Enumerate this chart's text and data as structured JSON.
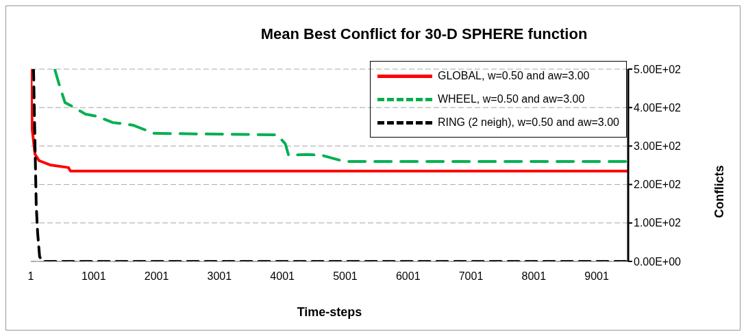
{
  "chart_data": {
    "type": "line",
    "title": "Mean Best Conflict for 30-D SPHERE function",
    "xlabel": "Time-steps",
    "ylabel": "Conflicts",
    "xlim": [
      1,
      9501
    ],
    "xticks": [
      1,
      1001,
      2001,
      3001,
      4001,
      5001,
      6001,
      7001,
      8001,
      9001
    ],
    "ylim": [
      0,
      500
    ],
    "yticks": [
      {
        "value": 0,
        "label": "0.00E+00"
      },
      {
        "value": 100,
        "label": "1.00E+02"
      },
      {
        "value": 200,
        "label": "2.00E+02"
      },
      {
        "value": 300,
        "label": "3.00E+02"
      },
      {
        "value": 400,
        "label": "4.00E+02"
      },
      {
        "value": 500,
        "label": "5.00E+02"
      }
    ],
    "grid": "y",
    "legend": "top right",
    "marker": "none",
    "series": [
      {
        "name": "GLOBAL, w=0.50 and aw=3.00",
        "color": "#ff0000",
        "line_style": "solid",
        "x": [
          1,
          24,
          67,
          132,
          305,
          599,
          632,
          9501
        ],
        "values": [
          500,
          342,
          279,
          262,
          251,
          244,
          235,
          235
        ]
      },
      {
        "name": "WHEEL, w=0.50 and aw=3.00",
        "color": "#00b050",
        "line_style": "dashed",
        "x": [
          381,
          457,
          545,
          650,
          870,
          1056,
          1306,
          1415,
          1632,
          1960,
          3918,
          4048,
          4100,
          4385,
          4625,
          4875,
          4984,
          9501
        ],
        "values": [
          500,
          457,
          413,
          404,
          383,
          377,
          361,
          359,
          354,
          333,
          329,
          306,
          276,
          278,
          276,
          265,
          260,
          260
        ]
      },
      {
        "name": "RING (2 neigh), w=0.50 and aw=3.00",
        "color": "#000000",
        "line_style": "dashed",
        "x": [
          44,
          65,
          87,
          109,
          141,
          185,
          9501
        ],
        "values": [
          500,
          324,
          146,
          75,
          12,
          0,
          0
        ]
      }
    ]
  }
}
